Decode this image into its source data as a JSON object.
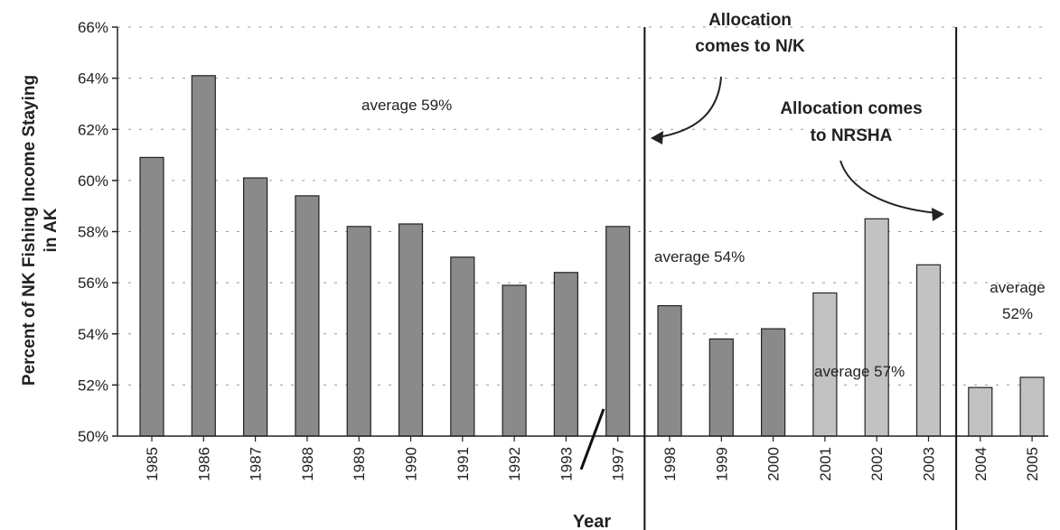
{
  "chart_data": {
    "type": "bar",
    "title": "",
    "xlabel": "Year",
    "ylabel_lines": [
      "Percent of NK Fishing Income Staying",
      "in AK"
    ],
    "ylim": [
      50,
      66
    ],
    "y_ticks": [
      50,
      52,
      54,
      56,
      58,
      60,
      62,
      64,
      66
    ],
    "y_tick_suffix": "%",
    "categories": [
      "1985",
      "1986",
      "1987",
      "1988",
      "1989",
      "1990",
      "1991",
      "1992",
      "1993",
      "1997",
      "1998",
      "1999",
      "2000",
      "2001",
      "2002",
      "2003",
      "2004",
      "2005"
    ],
    "values": [
      60.9,
      64.1,
      60.1,
      59.4,
      58.2,
      58.3,
      57.0,
      55.9,
      56.4,
      58.2,
      55.1,
      53.8,
      54.2,
      55.6,
      58.5,
      56.7,
      51.9,
      52.3
    ],
    "bar_colors": {
      "dark": "#8a8a8a",
      "light": "#c2c2c2",
      "edge": "#222222"
    },
    "annotations": {
      "avg_59": "average 59%",
      "avg_54": "average 54%",
      "avg_57": "average 57%",
      "avg_52_line1": "average",
      "avg_52_line2": "52%",
      "alloc_nk_line1": "Allocation",
      "alloc_nk_line2": "comes to N/K",
      "alloc_nrsha_line1": "Allocation comes",
      "alloc_nrsha_line2": "to NRSHA"
    }
  }
}
